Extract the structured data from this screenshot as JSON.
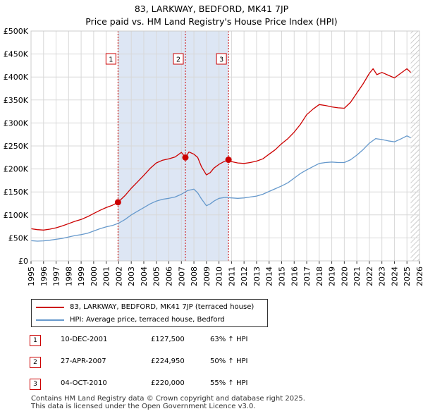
{
  "chart_data": {
    "type": "line",
    "title_line1": "83, LARKWAY, BEDFORD, MK41 7JP",
    "title_line2": "Price paid vs. HM Land Registry's House Price Index (HPI)",
    "xlabel": "",
    "ylabel": "",
    "xlim": [
      1995,
      2026
    ],
    "ylim": [
      0,
      500000
    ],
    "x_ticks": [
      "1995",
      "1996",
      "1997",
      "1998",
      "1999",
      "2000",
      "2001",
      "2002",
      "2003",
      "2004",
      "2005",
      "2006",
      "2007",
      "2008",
      "2009",
      "2010",
      "2011",
      "2012",
      "2013",
      "2014",
      "2015",
      "2016",
      "2017",
      "2018",
      "2019",
      "2020",
      "2021",
      "2022",
      "2023",
      "2024",
      "2025",
      "2026"
    ],
    "y_ticks": [
      {
        "value": 0,
        "label": "£0"
      },
      {
        "value": 50000,
        "label": "£50K"
      },
      {
        "value": 100000,
        "label": "£100K"
      },
      {
        "value": 150000,
        "label": "£150K"
      },
      {
        "value": 200000,
        "label": "£200K"
      },
      {
        "value": 250000,
        "label": "£250K"
      },
      {
        "value": 300000,
        "label": "£300K"
      },
      {
        "value": 350000,
        "label": "£350K"
      },
      {
        "value": 400000,
        "label": "£400K"
      },
      {
        "value": 450000,
        "label": "£450K"
      },
      {
        "value": 500000,
        "label": "£500K"
      }
    ],
    "grid": true,
    "shaded_range": [
      2001.94,
      2010.76
    ],
    "hatched_from": 2025.3,
    "series": [
      {
        "name": "83, LARKWAY, BEDFORD, MK41 7JP (terraced house)",
        "color": "#cc0000",
        "x": [
          1995.0,
          1995.5,
          1996.0,
          1996.5,
          1997.0,
          1997.5,
          1998.0,
          1998.5,
          1999.0,
          1999.5,
          2000.0,
          2000.5,
          2001.0,
          2001.5,
          2001.94,
          2002.5,
          2003.0,
          2003.5,
          2004.0,
          2004.5,
          2005.0,
          2005.5,
          2006.0,
          2006.5,
          2007.0,
          2007.32,
          2007.6,
          2008.0,
          2008.3,
          2008.6,
          2009.0,
          2009.3,
          2009.6,
          2010.0,
          2010.4,
          2010.76,
          2011.0,
          2011.5,
          2012.0,
          2012.5,
          2013.0,
          2013.5,
          2014.0,
          2014.5,
          2015.0,
          2015.5,
          2016.0,
          2016.5,
          2017.0,
          2017.5,
          2018.0,
          2018.5,
          2019.0,
          2019.5,
          2020.0,
          2020.5,
          2021.0,
          2021.5,
          2022.0,
          2022.3,
          2022.6,
          2023.0,
          2023.5,
          2024.0,
          2024.5,
          2025.0,
          2025.3
        ],
        "values": [
          70000,
          68000,
          67000,
          69000,
          72000,
          76000,
          81000,
          86000,
          90000,
          96000,
          103000,
          110000,
          116000,
          121000,
          127500,
          142000,
          158000,
          172000,
          186000,
          201000,
          213000,
          219000,
          222000,
          226000,
          236000,
          224950,
          237000,
          232000,
          225000,
          205000,
          187000,
          192000,
          202000,
          210000,
          216000,
          220000,
          216000,
          213000,
          212000,
          214000,
          217000,
          222000,
          232000,
          242000,
          255000,
          266000,
          280000,
          297000,
          318000,
          330000,
          340000,
          338000,
          335000,
          333000,
          332000,
          345000,
          365000,
          385000,
          408000,
          418000,
          405000,
          410000,
          404000,
          398000,
          408000,
          418000,
          410000
        ]
      },
      {
        "name": "HPI: Average price, terraced house, Bedford",
        "color": "#6699cc",
        "x": [
          1995.0,
          1995.5,
          1996.0,
          1996.5,
          1997.0,
          1997.5,
          1998.0,
          1998.5,
          1999.0,
          1999.5,
          2000.0,
          2000.5,
          2001.0,
          2001.5,
          2002.0,
          2002.5,
          2003.0,
          2003.5,
          2004.0,
          2004.5,
          2005.0,
          2005.5,
          2006.0,
          2006.5,
          2007.0,
          2007.5,
          2008.0,
          2008.3,
          2008.6,
          2009.0,
          2009.3,
          2009.6,
          2010.0,
          2010.5,
          2011.0,
          2011.5,
          2012.0,
          2012.5,
          2013.0,
          2013.5,
          2014.0,
          2014.5,
          2015.0,
          2015.5,
          2016.0,
          2016.5,
          2017.0,
          2017.5,
          2018.0,
          2018.5,
          2019.0,
          2019.5,
          2020.0,
          2020.5,
          2021.0,
          2021.5,
          2022.0,
          2022.5,
          2023.0,
          2023.5,
          2024.0,
          2024.5,
          2025.0,
          2025.3
        ],
        "values": [
          44000,
          43000,
          43500,
          45000,
          47000,
          49000,
          52000,
          55000,
          57000,
          60000,
          65000,
          70000,
          74000,
          77000,
          82000,
          90000,
          100000,
          108000,
          116000,
          124000,
          130000,
          134000,
          136000,
          139000,
          145000,
          153000,
          156000,
          148000,
          135000,
          120000,
          124000,
          130000,
          136000,
          138000,
          137000,
          136000,
          137000,
          139000,
          141000,
          145000,
          151000,
          157000,
          163000,
          170000,
          180000,
          190000,
          198000,
          205000,
          212000,
          214000,
          215000,
          214000,
          214000,
          220000,
          230000,
          242000,
          256000,
          266000,
          264000,
          261000,
          259000,
          265000,
          272000,
          268000
        ]
      }
    ],
    "sales": [
      {
        "marker": "1",
        "x": 2001.94,
        "value": 127500,
        "date": "10-DEC-2001",
        "price": "£127,500",
        "hpi": "63% ↑ HPI"
      },
      {
        "marker": "2",
        "x": 2007.32,
        "value": 224950,
        "date": "27-APR-2007",
        "price": "£224,950",
        "hpi": "50% ↑ HPI"
      },
      {
        "marker": "3",
        "x": 2010.76,
        "value": 220000,
        "date": "04-OCT-2010",
        "price": "£220,000",
        "hpi": "55% ↑ HPI"
      }
    ]
  },
  "legend": {
    "property_label": "83, LARKWAY, BEDFORD, MK41 7JP (terraced house)",
    "hpi_label": "HPI: Average price, terraced house, Bedford"
  },
  "footer": {
    "line1": "Contains HM Land Registry data © Crown copyright and database right 2025.",
    "line2": "This data is licensed under the Open Government Licence v3.0."
  }
}
